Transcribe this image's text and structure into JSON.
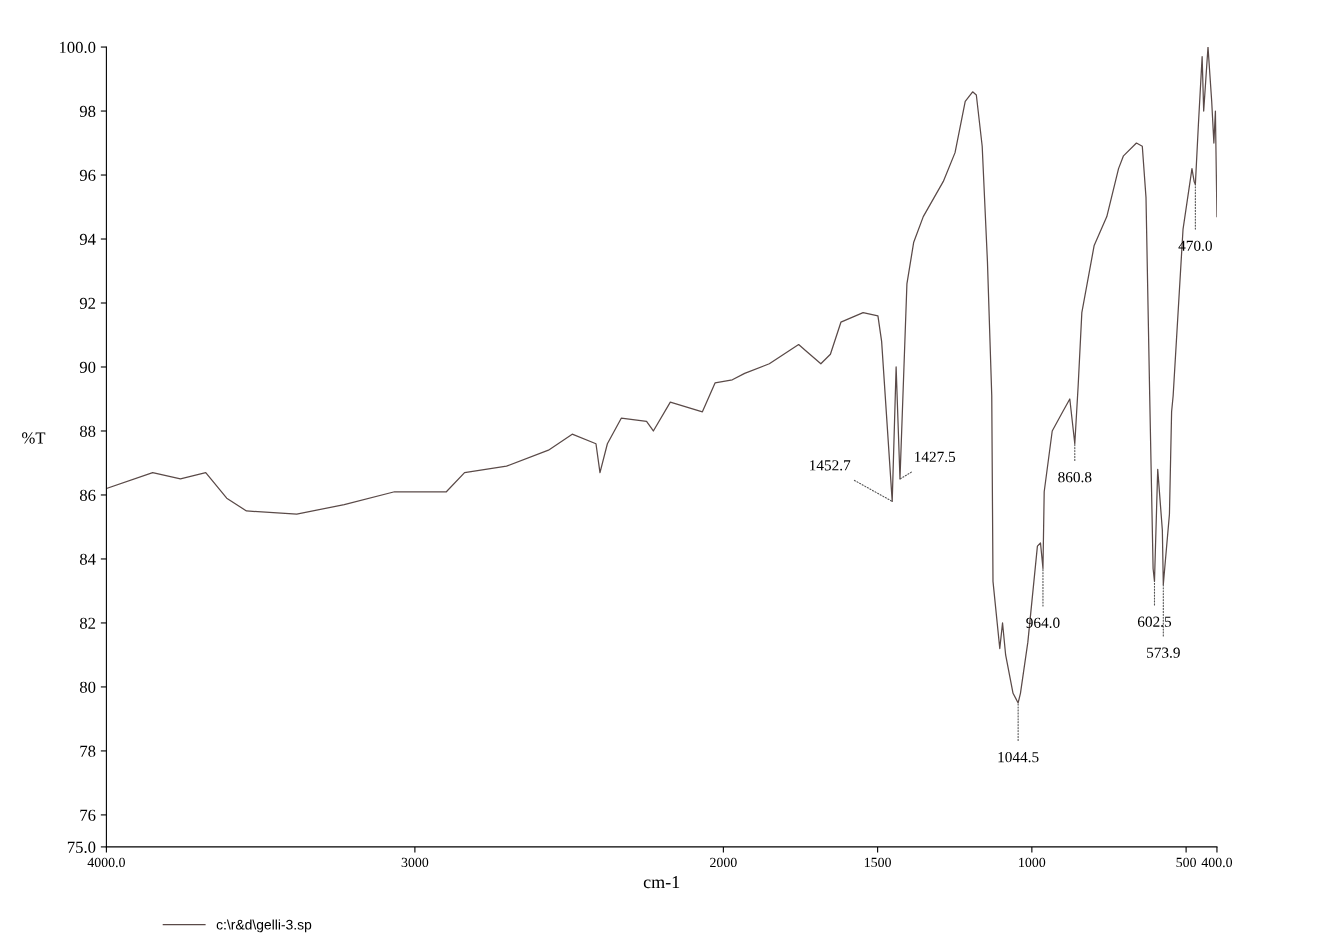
{
  "chart_data": {
    "type": "line",
    "xlabel": "cm-1",
    "ylabel": "%T",
    "xlim": [
      4000,
      400
    ],
    "ylim": [
      75,
      100
    ],
    "xticks": [
      {
        "value": 4000,
        "label": "4000.0"
      },
      3000,
      2000,
      1500,
      1000,
      500,
      {
        "value": 400,
        "label": "400.0"
      }
    ],
    "yticks": [
      {
        "value": 75,
        "label": "75.0"
      },
      76,
      78,
      80,
      82,
      84,
      86,
      88,
      90,
      92,
      94,
      96,
      98,
      {
        "value": 100,
        "label": "100.0"
      }
    ],
    "grid": false,
    "legend": "bottom left",
    "marker": "none",
    "line_style": "solid",
    "series": [
      {
        "name": "c:\\r&d\\gelli-3.sp",
        "color": "#5a4a48",
        "x": [
          4000,
          3850,
          3760,
          3678,
          3610,
          3546,
          3383,
          3229,
          3066,
          2898,
          2839,
          2703,
          2567,
          2490,
          2413,
          2400,
          2376,
          2331,
          2249,
          2227,
          2172,
          2068,
          2027,
          1971,
          1931,
          1851,
          1756,
          1732,
          1684,
          1653,
          1619,
          1547,
          1499,
          1487,
          1452.7,
          1440,
          1427.5,
          1405,
          1383,
          1352,
          1287,
          1249,
          1216,
          1192,
          1180,
          1161,
          1144,
          1130,
          1126,
          1104,
          1095,
          1085,
          1061,
          1044.5,
          1037,
          1013,
          982,
          972,
          964.0,
          960,
          934,
          900,
          877,
          860.8,
          850,
          838,
          798,
          757,
          719,
          703,
          661,
          642,
          630,
          618,
          607,
          602.5,
          592,
          577,
          573.9,
          554,
          547,
          542,
          510,
          481,
          474,
          470,
          460,
          448,
          443,
          436,
          429,
          417,
          410,
          405,
          400
        ],
        "values": [
          86.2,
          86.7,
          86.5,
          86.7,
          85.9,
          85.5,
          85.4,
          85.7,
          86.1,
          86.1,
          86.7,
          86.9,
          87.4,
          87.9,
          87.6,
          86.7,
          87.6,
          88.4,
          88.3,
          88.0,
          88.9,
          88.6,
          89.5,
          89.6,
          89.8,
          90.1,
          90.7,
          90.5,
          90.1,
          90.4,
          91.4,
          91.7,
          91.6,
          90.8,
          85.8,
          90.0,
          86.5,
          92.6,
          93.9,
          94.7,
          95.8,
          96.7,
          98.3,
          98.6,
          98.5,
          96.9,
          93.3,
          89.1,
          83.3,
          81.2,
          82.0,
          81.0,
          79.8,
          79.5,
          79.8,
          81.4,
          84.4,
          84.5,
          83.7,
          86.1,
          88.0,
          88.6,
          89.0,
          87.6,
          89.4,
          91.7,
          93.8,
          94.7,
          96.2,
          96.6,
          97.0,
          96.9,
          95.3,
          89.1,
          83.7,
          83.3,
          86.8,
          84.9,
          83.2,
          85.4,
          88.6,
          89.1,
          94.3,
          96.2,
          95.8,
          95.7,
          97.6,
          99.7,
          98.0,
          99.0,
          100.0,
          98.3,
          97.0,
          98.0,
          94.7
        ]
      }
    ],
    "annotations": [
      {
        "text": "1452.7",
        "x": 1452.7,
        "y": 85.8
      },
      {
        "text": "1427.5",
        "x": 1427.5,
        "y": 86.5
      },
      {
        "text": "1044.5",
        "x": 1044.5,
        "y": 79.5
      },
      {
        "text": "964.0",
        "x": 964.0,
        "y": 83.7
      },
      {
        "text": "860.8",
        "x": 860.8,
        "y": 87.6
      },
      {
        "text": "602.5",
        "x": 602.5,
        "y": 83.3
      },
      {
        "text": "573.9",
        "x": 573.9,
        "y": 83.2
      },
      {
        "text": "470.0",
        "x": 470,
        "y": 95.7
      }
    ]
  }
}
